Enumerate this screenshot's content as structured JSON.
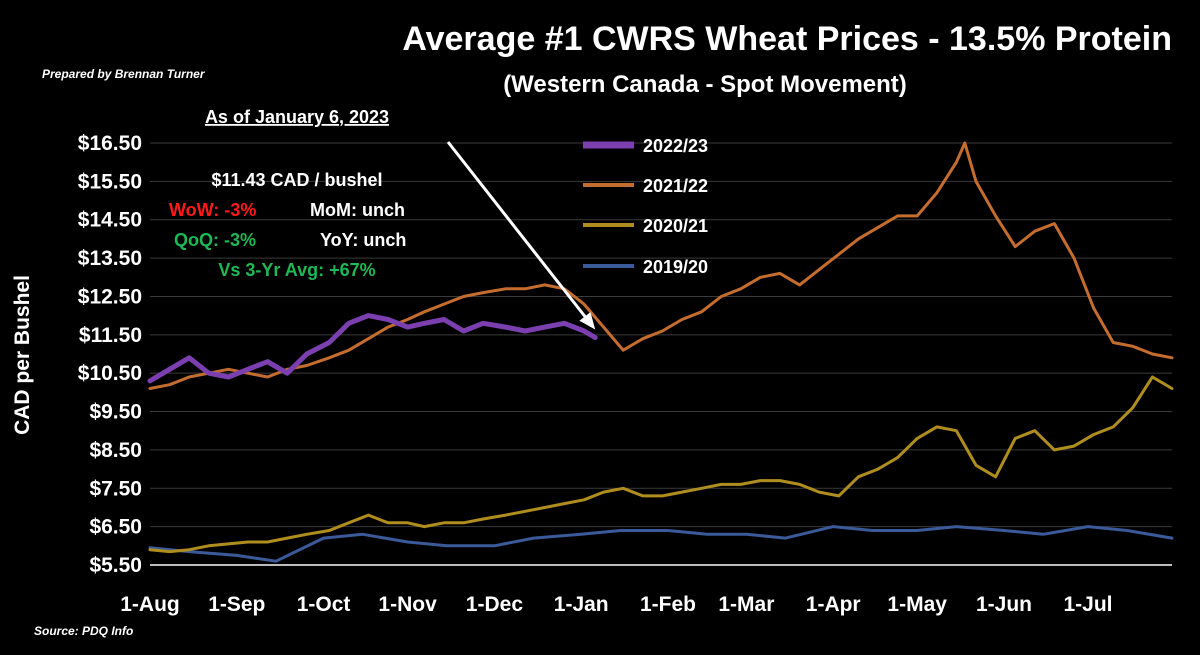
{
  "chart_data": {
    "type": "line",
    "title": "Average #1 CWRS Wheat Prices - 13.5% Protein",
    "subtitle": "(Western Canada - Spot Movement)",
    "credit": "Prepared by Brennan Turner",
    "source": "Source: PDQ Info",
    "ylabel": "CAD per Bushel",
    "ylim": [
      5.5,
      16.5
    ],
    "ytick_values": [
      5.5,
      6.5,
      7.5,
      8.5,
      9.5,
      10.5,
      11.5,
      12.5,
      13.5,
      14.5,
      15.5,
      16.5
    ],
    "ytick_labels": [
      "$5.50",
      "$6.50",
      "$7.50",
      "$8.50",
      "$9.50",
      "$10.50",
      "$11.50",
      "$12.50",
      "$13.50",
      "$14.50",
      "$15.50",
      "$16.50"
    ],
    "xlim": [
      "1-Aug",
      "31-Jul"
    ],
    "xtick_labels": [
      "1-Aug",
      "1-Sep",
      "1-Oct",
      "1-Nov",
      "1-Dec",
      "1-Jan",
      "1-Feb",
      "1-Mar",
      "1-Apr",
      "1-May",
      "1-Jun",
      "1-Jul"
    ],
    "grid": "horizontal",
    "legend_position": "top-center",
    "series": [
      {
        "name": "2022/23",
        "color": "#7c3fb0",
        "x": [
          "1-Aug",
          "8-Aug",
          "15-Aug",
          "22-Aug",
          "29-Aug",
          "5-Sep",
          "12-Sep",
          "19-Sep",
          "26-Sep",
          "3-Oct",
          "10-Oct",
          "17-Oct",
          "24-Oct",
          "31-Oct",
          "7-Nov",
          "14-Nov",
          "21-Nov",
          "28-Nov",
          "5-Dec",
          "12-Dec",
          "19-Dec",
          "26-Dec",
          "2-Jan",
          "6-Jan"
        ],
        "values": [
          10.3,
          10.6,
          10.9,
          10.5,
          10.4,
          10.6,
          10.8,
          10.5,
          11.0,
          11.3,
          11.8,
          12.0,
          11.9,
          11.7,
          11.8,
          11.9,
          11.6,
          11.8,
          11.7,
          11.6,
          11.7,
          11.8,
          11.6,
          11.43
        ]
      },
      {
        "name": "2021/22",
        "color": "#c46d2e",
        "x": [
          "1-Aug",
          "8-Aug",
          "15-Aug",
          "22-Aug",
          "29-Aug",
          "5-Sep",
          "12-Sep",
          "19-Sep",
          "26-Sep",
          "3-Oct",
          "10-Oct",
          "17-Oct",
          "24-Oct",
          "31-Oct",
          "7-Nov",
          "14-Nov",
          "21-Nov",
          "28-Nov",
          "5-Dec",
          "12-Dec",
          "19-Dec",
          "26-Dec",
          "2-Jan",
          "9-Jan",
          "16-Jan",
          "23-Jan",
          "30-Jan",
          "6-Feb",
          "13-Feb",
          "20-Feb",
          "27-Feb",
          "6-Mar",
          "13-Mar",
          "20-Mar",
          "27-Mar",
          "3-Apr",
          "10-Apr",
          "17-Apr",
          "24-Apr",
          "1-May",
          "8-May",
          "15-May",
          "18-May",
          "22-May",
          "29-May",
          "5-Jun",
          "12-Jun",
          "19-Jun",
          "26-Jun",
          "3-Jul",
          "10-Jul",
          "17-Jul",
          "24-Jul",
          "31-Jul"
        ],
        "values": [
          10.1,
          10.2,
          10.4,
          10.5,
          10.6,
          10.5,
          10.4,
          10.6,
          10.7,
          10.9,
          11.1,
          11.4,
          11.7,
          11.9,
          12.1,
          12.3,
          12.5,
          12.6,
          12.7,
          12.7,
          12.8,
          12.7,
          12.3,
          11.7,
          11.1,
          11.4,
          11.6,
          11.9,
          12.1,
          12.5,
          12.7,
          13.0,
          13.1,
          12.8,
          13.2,
          13.6,
          14.0,
          14.3,
          14.6,
          14.6,
          15.2,
          16.0,
          16.5,
          15.5,
          14.6,
          13.8,
          14.2,
          14.4,
          13.5,
          12.2,
          11.3,
          11.2,
          11.0,
          10.9
        ]
      },
      {
        "name": "2020/21",
        "color": "#b08d1f",
        "x": [
          "1-Aug",
          "8-Aug",
          "15-Aug",
          "22-Aug",
          "29-Aug",
          "5-Sep",
          "12-Sep",
          "19-Sep",
          "26-Sep",
          "3-Oct",
          "10-Oct",
          "17-Oct",
          "24-Oct",
          "31-Oct",
          "7-Nov",
          "14-Nov",
          "21-Nov",
          "28-Nov",
          "5-Dec",
          "12-Dec",
          "19-Dec",
          "26-Dec",
          "2-Jan",
          "9-Jan",
          "16-Jan",
          "23-Jan",
          "30-Jan",
          "6-Feb",
          "13-Feb",
          "20-Feb",
          "27-Feb",
          "6-Mar",
          "13-Mar",
          "20-Mar",
          "27-Mar",
          "3-Apr",
          "10-Apr",
          "17-Apr",
          "24-Apr",
          "1-May",
          "8-May",
          "15-May",
          "22-May",
          "29-May",
          "5-Jun",
          "12-Jun",
          "19-Jun",
          "26-Jun",
          "3-Jul",
          "10-Jul",
          "17-Jul",
          "24-Jul",
          "31-Jul"
        ],
        "values": [
          5.9,
          5.85,
          5.9,
          6.0,
          6.05,
          6.1,
          6.1,
          6.2,
          6.3,
          6.4,
          6.6,
          6.8,
          6.6,
          6.6,
          6.5,
          6.6,
          6.6,
          6.7,
          6.8,
          6.9,
          7.0,
          7.1,
          7.2,
          7.4,
          7.5,
          7.3,
          7.3,
          7.4,
          7.5,
          7.6,
          7.6,
          7.7,
          7.7,
          7.6,
          7.4,
          7.3,
          7.8,
          8.0,
          8.3,
          8.8,
          9.1,
          9.0,
          8.1,
          7.8,
          8.8,
          9.0,
          8.5,
          8.6,
          8.9,
          9.1,
          9.6,
          10.4,
          10.1
        ]
      },
      {
        "name": "2019/20",
        "color": "#3a5a9a",
        "x": [
          "1-Aug",
          "15-Aug",
          "1-Sep",
          "15-Sep",
          "1-Oct",
          "15-Oct",
          "1-Nov",
          "15-Nov",
          "1-Dec",
          "15-Dec",
          "1-Jan",
          "15-Jan",
          "1-Feb",
          "15-Feb",
          "1-Mar",
          "15-Mar",
          "1-Apr",
          "15-Apr",
          "1-May",
          "15-May",
          "1-Jun",
          "15-Jun",
          "1-Jul",
          "15-Jul",
          "31-Jul"
        ],
        "values": [
          5.95,
          5.85,
          5.75,
          5.6,
          6.2,
          6.3,
          6.1,
          6.0,
          6.0,
          6.2,
          6.3,
          6.4,
          6.4,
          6.3,
          6.3,
          6.2,
          6.5,
          6.4,
          6.4,
          6.5,
          6.4,
          6.3,
          6.5,
          6.4,
          6.2
        ]
      }
    ],
    "annotation": {
      "heading": "As of January 6, 2023",
      "price": "$11.43 CAD / bushel",
      "wow": "WoW: -3%",
      "mom": "MoM: unch",
      "qoq": "QoQ: -3%",
      "yoy": "YoY: unch",
      "vs3yr": "Vs 3-Yr Avg: +67%",
      "arrow_to": {
        "x": "6-Jan",
        "y": 11.43
      }
    },
    "colors": {
      "negative": "#ff1a1a",
      "positive": "#1db954",
      "text": "#ffffff",
      "grid": "#3a3a3a"
    }
  }
}
